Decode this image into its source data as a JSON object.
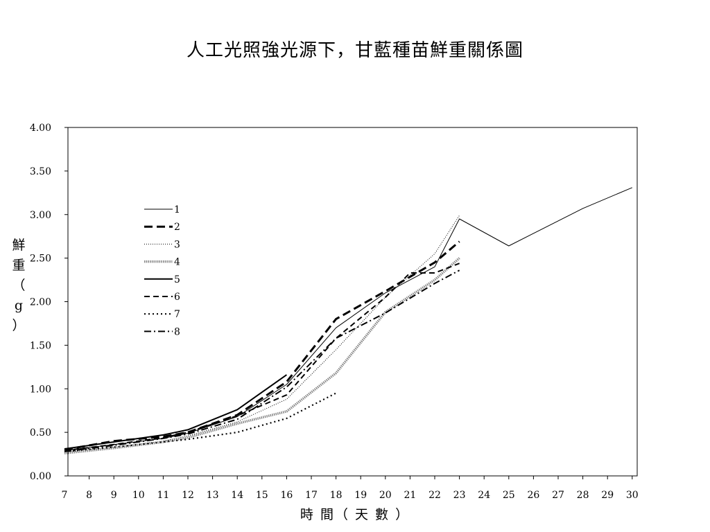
{
  "chart_data": {
    "type": "line",
    "title": "人工光照強光源下，甘藍種苗鮮重關係圖",
    "xlabel": "時 間（ 天 數 ）",
    "ylabel": "鮮 重 （ g ）",
    "xlim": [
      7,
      30
    ],
    "ylim": [
      0,
      4
    ],
    "x_ticks": [
      "7",
      "8",
      "9",
      "10",
      "11",
      "12",
      "13",
      "14",
      "15",
      "16",
      "17",
      "18",
      "19",
      "20",
      "21",
      "22",
      "23",
      "24",
      "25",
      "26",
      "27",
      "28",
      "29",
      "30"
    ],
    "y_ticks": [
      "0.00",
      "0.50",
      "1.00",
      "1.50",
      "2.00",
      "2.50",
      "3.00",
      "3.50",
      "4.00"
    ],
    "grid": false,
    "legend_position": "upper-left inside plot",
    "series": [
      {
        "name": "1",
        "style": "solid-thin",
        "points": [
          [
            7,
            0.29
          ],
          [
            9,
            0.36
          ],
          [
            11,
            0.43
          ],
          [
            12,
            0.49
          ],
          [
            14,
            0.68
          ],
          [
            16,
            1.05
          ],
          [
            18,
            1.7
          ],
          [
            20,
            2.1
          ],
          [
            22,
            2.4
          ],
          [
            23,
            2.95
          ],
          [
            25,
            2.64
          ],
          [
            28,
            3.07
          ],
          [
            30,
            3.31
          ]
        ]
      },
      {
        "name": "2",
        "style": "long-dash-thick",
        "points": [
          [
            7,
            0.3
          ],
          [
            9,
            0.4
          ],
          [
            11,
            0.45
          ],
          [
            12,
            0.5
          ],
          [
            14,
            0.7
          ],
          [
            16,
            1.08
          ],
          [
            18,
            1.8
          ],
          [
            20,
            2.12
          ],
          [
            22,
            2.45
          ],
          [
            23,
            2.69
          ]
        ]
      },
      {
        "name": "3",
        "style": "fine-dot",
        "points": [
          [
            7,
            0.27
          ],
          [
            9,
            0.33
          ],
          [
            11,
            0.4
          ],
          [
            12,
            0.46
          ],
          [
            14,
            0.62
          ],
          [
            16,
            0.88
          ],
          [
            18,
            1.45
          ],
          [
            20,
            2.05
          ],
          [
            22,
            2.55
          ],
          [
            23,
            2.99
          ]
        ]
      },
      {
        "name": "4",
        "style": "grey-dotted-thick",
        "points": [
          [
            7,
            0.26
          ],
          [
            9,
            0.32
          ],
          [
            11,
            0.39
          ],
          [
            12,
            0.44
          ],
          [
            14,
            0.6
          ],
          [
            16,
            0.74
          ],
          [
            18,
            1.18
          ],
          [
            20,
            1.88
          ],
          [
            22,
            2.25
          ],
          [
            23,
            2.5
          ]
        ]
      },
      {
        "name": "5",
        "style": "solid-medium",
        "points": [
          [
            7,
            0.31
          ],
          [
            9,
            0.39
          ],
          [
            11,
            0.47
          ],
          [
            12,
            0.53
          ],
          [
            14,
            0.76
          ],
          [
            16,
            1.16
          ]
        ]
      },
      {
        "name": "6",
        "style": "medium-dash",
        "points": [
          [
            7,
            0.29
          ],
          [
            9,
            0.36
          ],
          [
            11,
            0.44
          ],
          [
            12,
            0.5
          ],
          [
            14,
            0.69
          ],
          [
            16,
            0.93
          ],
          [
            18,
            1.58
          ],
          [
            20,
            2.05
          ],
          [
            21,
            2.33
          ],
          [
            22,
            2.33
          ],
          [
            23,
            2.44
          ]
        ]
      },
      {
        "name": "7",
        "style": "short-dot",
        "points": [
          [
            7,
            0.28
          ],
          [
            9,
            0.33
          ],
          [
            11,
            0.39
          ],
          [
            12,
            0.42
          ],
          [
            14,
            0.5
          ],
          [
            16,
            0.66
          ],
          [
            18,
            0.95
          ]
        ]
      },
      {
        "name": "8",
        "style": "dash-dot",
        "points": [
          [
            7,
            0.28
          ],
          [
            9,
            0.35
          ],
          [
            11,
            0.43
          ],
          [
            12,
            0.48
          ],
          [
            14,
            0.65
          ],
          [
            16,
            1.02
          ],
          [
            18,
            1.58
          ],
          [
            20,
            1.87
          ],
          [
            22,
            2.21
          ],
          [
            23,
            2.36
          ]
        ]
      }
    ]
  }
}
